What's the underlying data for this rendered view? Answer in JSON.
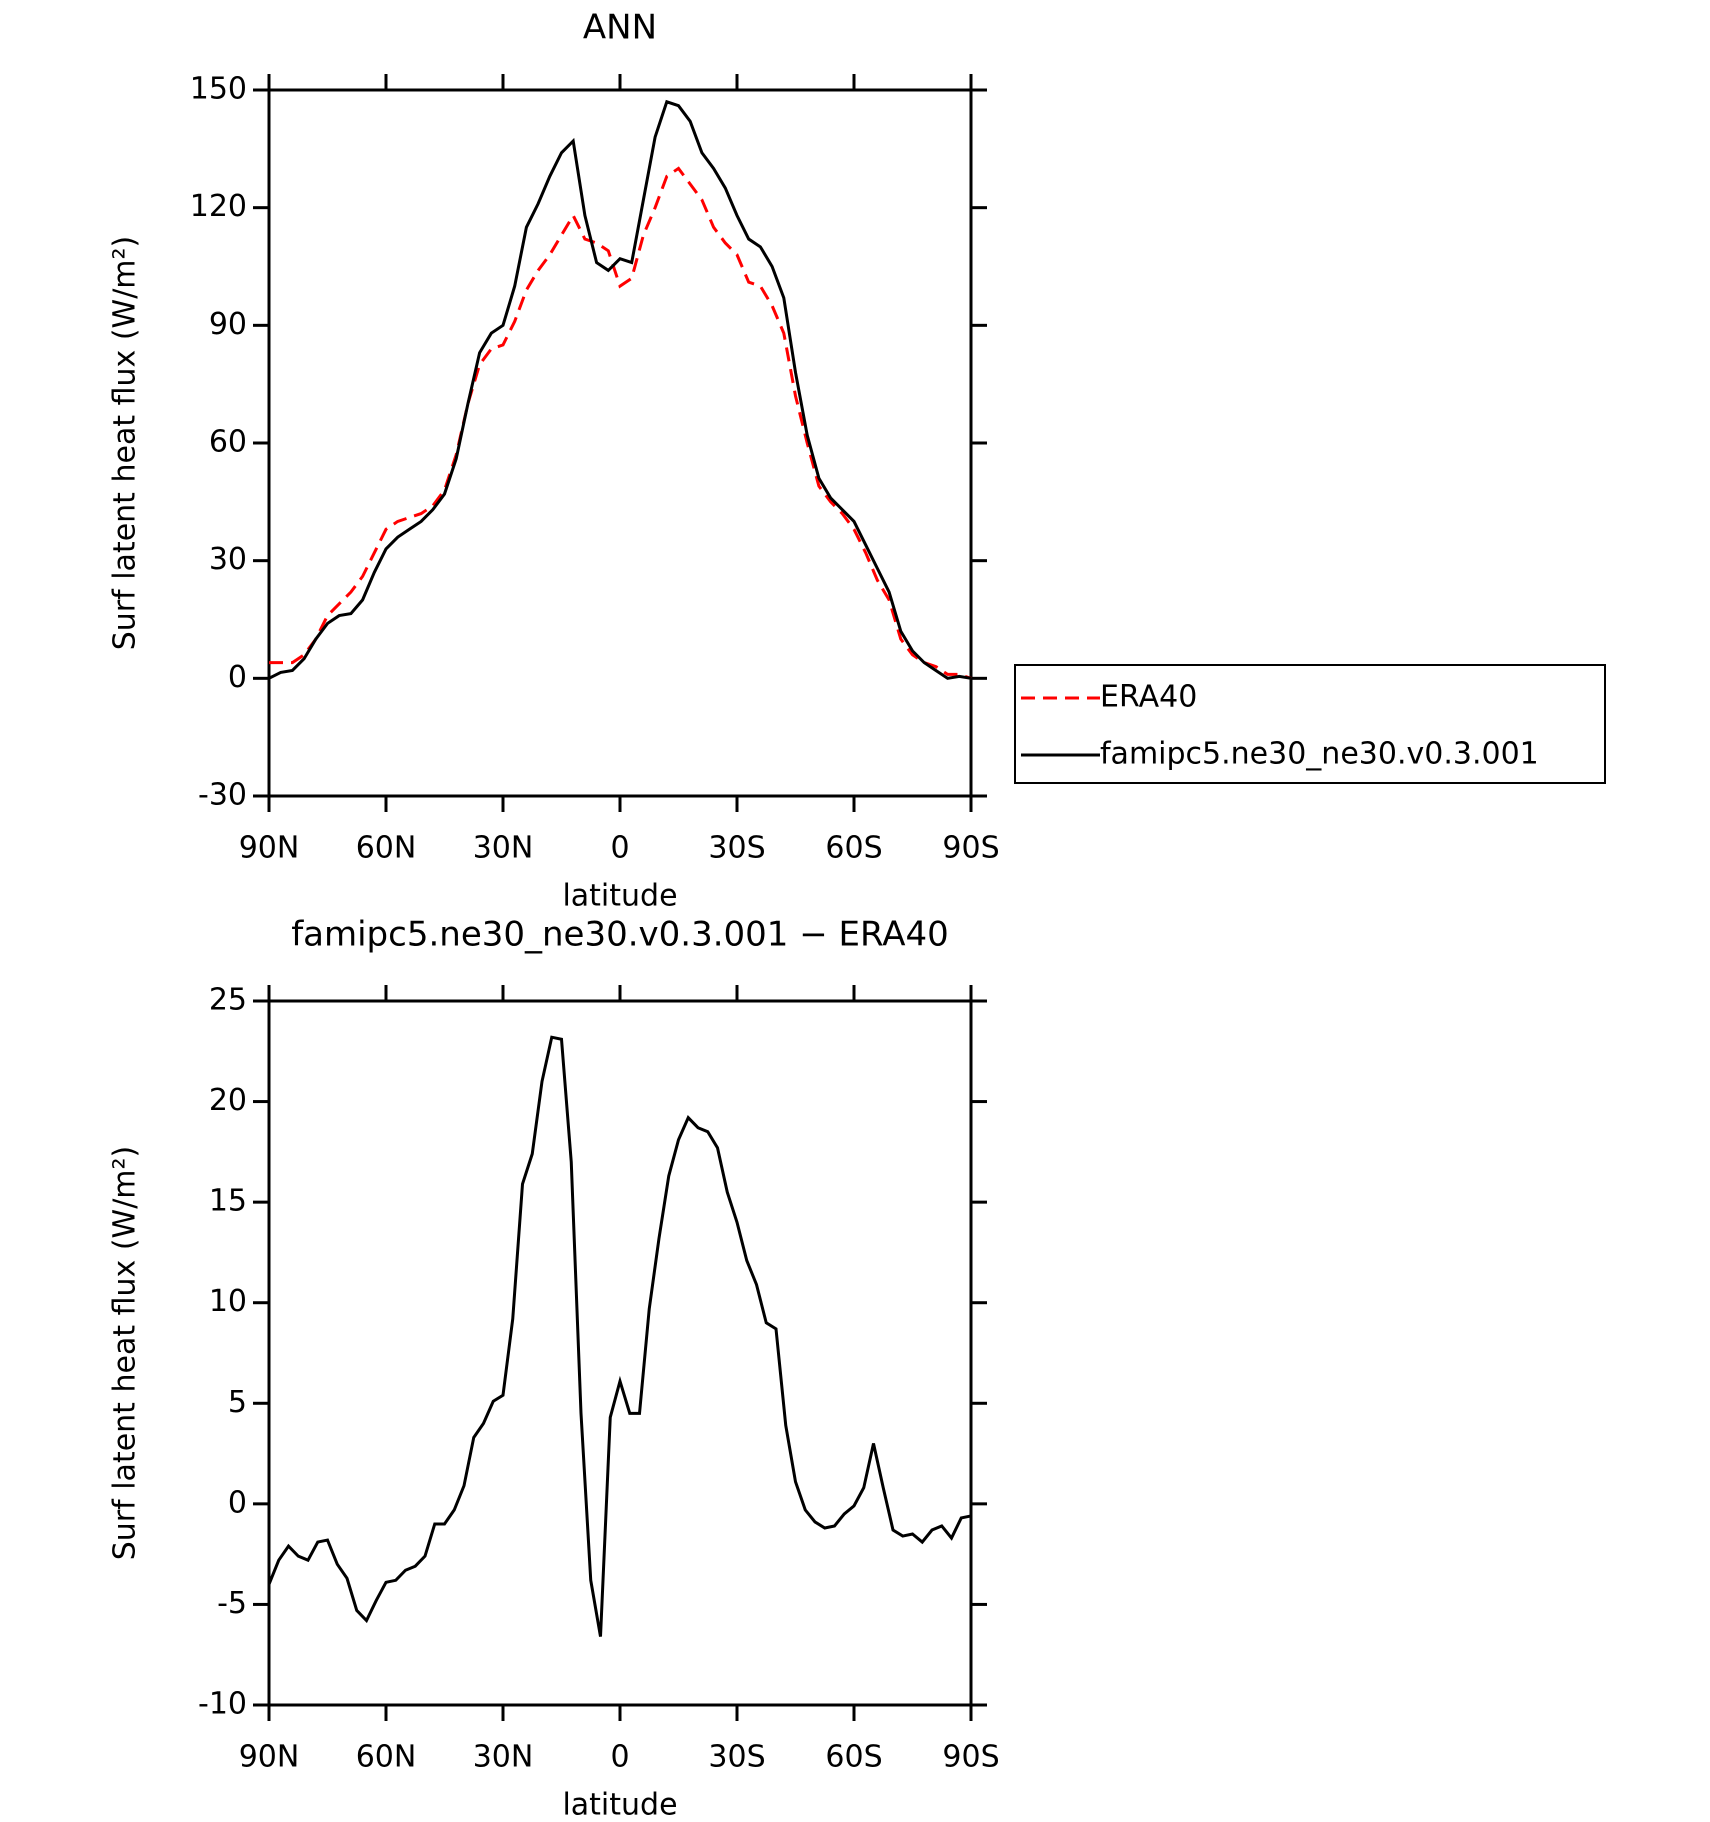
{
  "chart_data": [
    {
      "type": "line",
      "title": "ANN",
      "xlabel": "latitude",
      "ylabel": "Surf latent heat flux (W/m²)",
      "x": [
        90,
        87,
        84,
        81,
        78,
        75,
        72,
        69,
        66,
        63,
        60,
        57,
        54,
        51,
        48,
        45,
        42,
        39,
        36,
        33,
        30,
        27,
        24,
        21,
        18,
        15,
        12,
        9,
        6,
        3,
        0,
        -3,
        -6,
        -9,
        -12,
        -15,
        -18,
        -21,
        -24,
        -27,
        -30,
        -33,
        -36,
        -39,
        -42,
        -45,
        -48,
        -51,
        -54,
        -57,
        -60,
        -63,
        -66,
        -69,
        -72,
        -75,
        -78,
        -81,
        -84,
        -87,
        -90
      ],
      "series": [
        {
          "name": "ERA40",
          "color": "#ff0000",
          "dash": true,
          "values": [
            4,
            4,
            4,
            6,
            10,
            16,
            19,
            22,
            26,
            32,
            38,
            40,
            41,
            42,
            44,
            48,
            57,
            70,
            80,
            84,
            85,
            91,
            99,
            104,
            108,
            113,
            118,
            112,
            111,
            109,
            100,
            102,
            113,
            120,
            128,
            130,
            126,
            122,
            115,
            111,
            108,
            101,
            100,
            95,
            88,
            72,
            60,
            49,
            45,
            42,
            38,
            32,
            25,
            20,
            10,
            6,
            4,
            3,
            1,
            1,
            0
          ]
        },
        {
          "name": "famipc5.ne30_ne30.v0.3.001",
          "color": "#000000",
          "dash": false,
          "values": [
            0,
            1.5,
            2,
            5,
            10,
            14,
            16,
            16.5,
            20,
            27,
            33,
            36,
            38,
            40,
            43,
            47,
            56,
            70,
            83,
            88,
            90,
            100,
            115,
            121,
            128,
            134,
            137,
            118,
            106,
            104,
            107,
            106,
            122,
            138,
            147,
            146,
            142,
            134,
            130,
            125,
            118,
            112,
            110,
            105,
            97,
            78,
            62,
            51,
            46,
            43,
            40,
            34,
            28,
            22,
            12,
            7,
            4,
            2,
            0,
            0.5,
            0
          ]
        }
      ],
      "xlim": [
        90,
        -90
      ],
      "xticks": [
        {
          "value": 90,
          "label": "90N"
        },
        {
          "value": 60,
          "label": "60N"
        },
        {
          "value": 30,
          "label": "30N"
        },
        0,
        {
          "value": -30,
          "label": "30S"
        },
        {
          "value": -60,
          "label": "60S"
        },
        {
          "value": -90,
          "label": "90S"
        }
      ],
      "ylim": [
        -30,
        150
      ],
      "yticks": [
        -30,
        0,
        30,
        60,
        90,
        120,
        150
      ],
      "legend": "right"
    },
    {
      "type": "line",
      "title": "famipc5.ne30_ne30.v0.3.001 − ERA40",
      "xlabel": "latitude",
      "ylabel": "Surf latent heat flux (W/m²)",
      "x": [
        90,
        87.5,
        85,
        82.5,
        80,
        77.5,
        75,
        72.5,
        70,
        67.5,
        65,
        62.5,
        60,
        57.5,
        55,
        52.5,
        50,
        47.5,
        45,
        42.5,
        40,
        37.5,
        35,
        32.5,
        30,
        27.5,
        25,
        22.5,
        20,
        17.5,
        15,
        12.5,
        10,
        7.5,
        5,
        2.5,
        0,
        -2.5,
        -5,
        -7.5,
        -10,
        -12.5,
        -15,
        -17.5,
        -20,
        -22.5,
        -25,
        -27.5,
        -30,
        -32.5,
        -35,
        -37.5,
        -40,
        -42.5,
        -45,
        -47.5,
        -50,
        -52.5,
        -55,
        -57.5,
        -60,
        -62.5,
        -65,
        -67.5,
        -70,
        -72.5,
        -75,
        -77.5,
        -80,
        -82.5,
        -85,
        -87.5,
        -90
      ],
      "values": [
        -4,
        -2.8,
        -2.1,
        -2.6,
        -2.8,
        -1.9,
        -1.8,
        -3,
        -3.7,
        -5.3,
        -5.8,
        -4.8,
        -3.9,
        -3.8,
        -3.3,
        -3.1,
        -2.6,
        -1,
        -1,
        -0.3,
        0.9,
        3.3,
        4,
        5.1,
        5.4,
        9.2,
        15.9,
        17.4,
        21,
        23.2,
        23.1,
        17,
        4.5,
        -3.8,
        -6.6,
        4.3,
        6.1,
        4.5,
        4.5,
        9.7,
        13.2,
        16.3,
        18.1,
        19.2,
        18.7,
        18.5,
        17.7,
        15.5,
        14,
        12.1,
        10.9,
        9,
        8.7,
        3.9,
        1.1,
        -0.3,
        -0.9,
        -1.2,
        -1.1,
        -0.5,
        -0.1,
        0.8,
        3,
        0.8,
        -1.3,
        -1.6,
        -1.5,
        -1.9,
        -1.3,
        -1.1,
        -1.7,
        -0.7,
        -0.6
      ],
      "color": "#000000",
      "xlim": [
        90,
        -90
      ],
      "xticks": [
        {
          "value": 90,
          "label": "90N"
        },
        {
          "value": 60,
          "label": "60N"
        },
        {
          "value": 30,
          "label": "30N"
        },
        0,
        {
          "value": -30,
          "label": "30S"
        },
        {
          "value": -60,
          "label": "60S"
        },
        {
          "value": -90,
          "label": "90S"
        }
      ],
      "ylim": [
        -10,
        25
      ],
      "yticks": [
        -10,
        -5,
        0,
        5,
        10,
        15,
        20,
        25
      ]
    }
  ]
}
